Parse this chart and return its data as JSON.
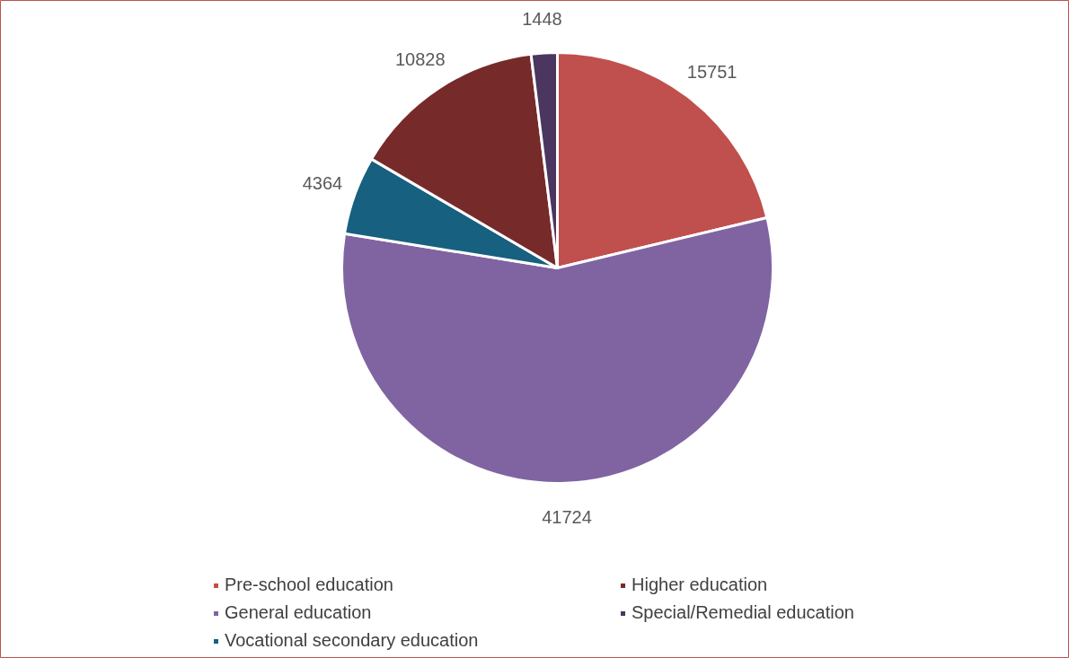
{
  "chart_data": {
    "type": "pie",
    "categories": [
      "Pre-school education",
      "General education",
      "Vocational secondary education",
      "Higher education",
      "Special/Remedial education"
    ],
    "values": [
      15751,
      41724,
      4364,
      10828,
      1448
    ],
    "colors": [
      "#c0504d",
      "#8064a2",
      "#17607f",
      "#772a2a",
      "#4b3660"
    ],
    "data_labels": true,
    "legend": "bottom"
  }
}
